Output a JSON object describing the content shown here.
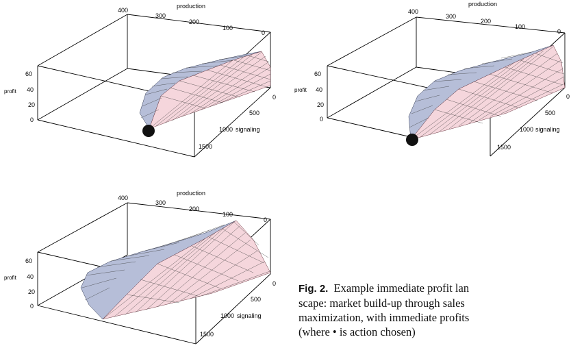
{
  "figure": {
    "caption_label": "Fig. 2.",
    "caption_lines": [
      "Example immediate profit lan",
      "scape: market build-up through sales",
      "maximization, with immediate profits",
      "(where • is action chosen)"
    ]
  },
  "chart_data": [
    {
      "type": "surface",
      "panel": "top-left",
      "axes": {
        "production": {
          "label": "production",
          "ticks": [
            "400",
            "300",
            "200",
            "100",
            "0"
          ]
        },
        "signaling": {
          "label": "signaling",
          "ticks": [
            "0",
            "500",
            "1000",
            "1500"
          ]
        },
        "profit": {
          "label": "profit",
          "ticks": [
            "0",
            "20",
            "40",
            "60"
          ]
        }
      },
      "chosen_action_marker": true
    },
    {
      "type": "surface",
      "panel": "top-right",
      "axes": {
        "production": {
          "label": "production",
          "ticks": [
            "400",
            "300",
            "200",
            "100",
            "0"
          ]
        },
        "signaling": {
          "label": "signaling",
          "ticks": [
            "0",
            "500",
            "1000",
            "1500"
          ]
        },
        "profit": {
          "label": "profit",
          "ticks": [
            "0",
            "20",
            "40",
            "60"
          ]
        }
      },
      "chosen_action_marker": true
    },
    {
      "type": "surface",
      "panel": "bottom-left",
      "axes": {
        "production": {
          "label": "production",
          "ticks": [
            "400",
            "300",
            "200",
            "100",
            "0"
          ]
        },
        "signaling": {
          "label": "signaling",
          "ticks": [
            "0",
            "500",
            "1000",
            "1500"
          ]
        },
        "profit": {
          "label": "profit",
          "ticks": [
            "0",
            "20",
            "40",
            "60"
          ]
        }
      },
      "chosen_action_marker": false
    }
  ]
}
